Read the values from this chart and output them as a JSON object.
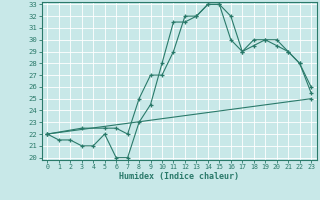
{
  "title": "",
  "xlabel": "Humidex (Indice chaleur)",
  "xlim": [
    -0.5,
    23.5
  ],
  "ylim": [
    19.8,
    33.2
  ],
  "yticks": [
    20,
    21,
    22,
    23,
    24,
    25,
    26,
    27,
    28,
    29,
    30,
    31,
    32,
    33
  ],
  "xticks": [
    0,
    1,
    2,
    3,
    4,
    5,
    6,
    7,
    8,
    9,
    10,
    11,
    12,
    13,
    14,
    15,
    16,
    17,
    18,
    19,
    20,
    21,
    22,
    23
  ],
  "bg_color": "#c8e8e8",
  "line_color": "#2a7a6a",
  "grid_color": "#ffffff",
  "lines": [
    {
      "x": [
        0,
        1,
        2,
        3,
        4,
        5,
        6,
        7,
        8,
        9,
        10,
        11,
        12,
        13,
        14,
        15,
        16,
        17,
        18,
        19,
        20,
        21,
        22,
        23
      ],
      "y": [
        22,
        21.5,
        21.5,
        21,
        21,
        22,
        20,
        20,
        23,
        24.5,
        28,
        31.5,
        31.5,
        32,
        33,
        33,
        32,
        29,
        29.5,
        30,
        30,
        29,
        28,
        25.5
      ]
    },
    {
      "x": [
        0,
        3,
        5,
        6,
        7,
        8,
        9,
        10,
        11,
        12,
        13,
        14,
        15,
        16,
        17,
        18,
        19,
        20,
        21,
        22,
        23
      ],
      "y": [
        22,
        22.5,
        22.5,
        22.5,
        22,
        25,
        27,
        27,
        29,
        32,
        32,
        33,
        33,
        30,
        29,
        30,
        30,
        29.5,
        29,
        28,
        26
      ]
    },
    {
      "x": [
        0,
        23
      ],
      "y": [
        22,
        25
      ]
    }
  ]
}
